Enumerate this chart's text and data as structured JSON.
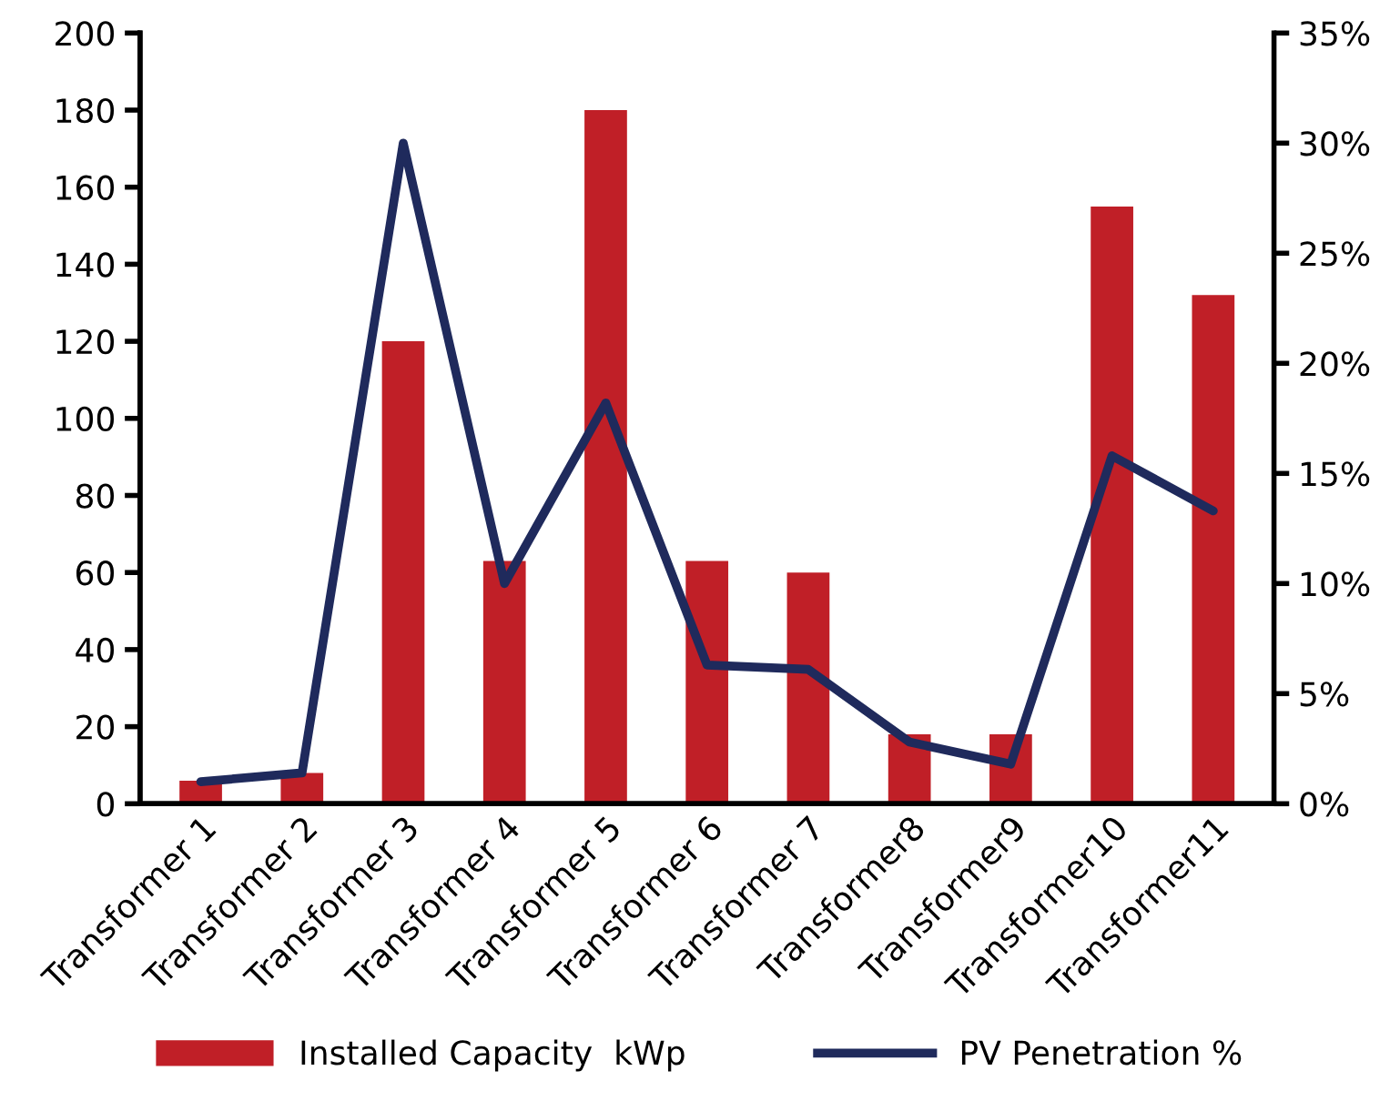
{
  "chart_data": {
    "type": "bar",
    "categories": [
      "Transformer 1",
      "Transformer 2",
      "Transformer 3",
      "Transformer 4",
      "Transformer 5",
      "Transformer 6",
      "Transformer 7",
      "Transformer8",
      "Transformer9",
      "Transformer10",
      "Transformer11"
    ],
    "series": [
      {
        "name": "Installed Capacity  kWp",
        "color": "#c01f27",
        "values": [
          6,
          8,
          120,
          63,
          180,
          63,
          60,
          18,
          18,
          155,
          132
        ]
      },
      {
        "name": "PV Penetration %",
        "type": "line",
        "axis": "y2",
        "color": "#1f2a5c",
        "values": [
          1.0,
          1.4,
          30.0,
          10.0,
          18.2,
          6.3,
          6.1,
          2.8,
          1.8,
          15.8,
          13.3
        ]
      }
    ],
    "ylim": [
      0,
      200
    ],
    "yticks": [
      0,
      20,
      40,
      60,
      80,
      100,
      120,
      140,
      160,
      180,
      200
    ],
    "y2lim": [
      0,
      35
    ],
    "y2ticks": [
      {
        "value": 0,
        "label": "0%"
      },
      {
        "value": 5,
        "label": "5%"
      },
      {
        "value": 10,
        "label": "10%"
      },
      {
        "value": 15,
        "label": "15%"
      },
      {
        "value": 20,
        "label": "20%"
      },
      {
        "value": 25,
        "label": "25%"
      },
      {
        "value": 30,
        "label": "30%"
      },
      {
        "value": 35,
        "label": "35%"
      }
    ],
    "grid": false,
    "legend": "bottom",
    "marker": "none",
    "line_style": "solid"
  }
}
